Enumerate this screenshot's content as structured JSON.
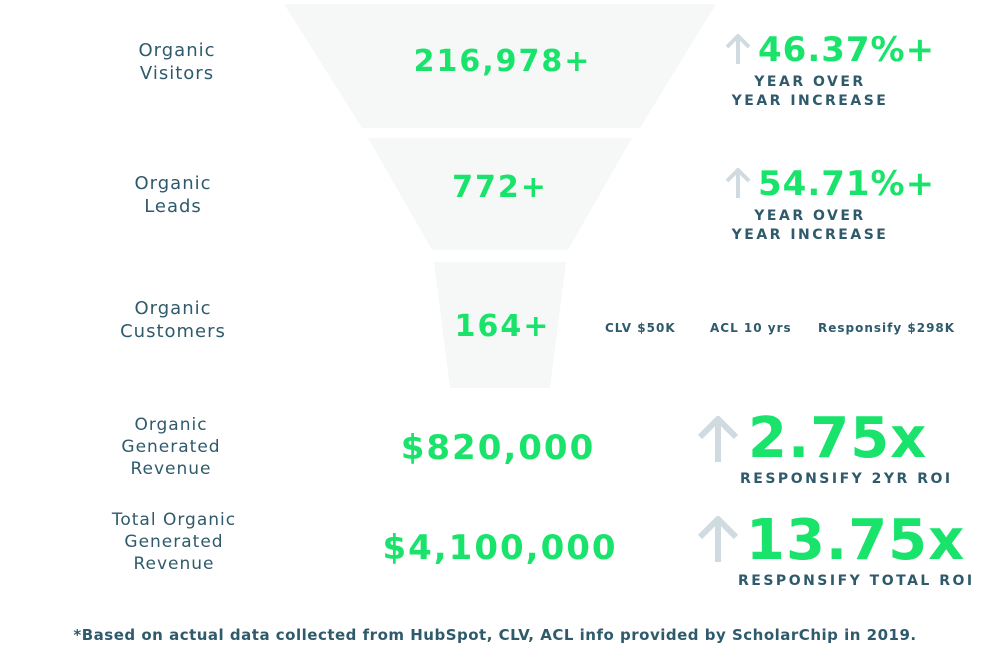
{
  "stages": [
    {
      "label_lines": [
        "Organic",
        "Visitors"
      ],
      "value": "216,978+",
      "change": "46.37%+",
      "caption_lines": [
        "YEAR OVER",
        "YEAR INCREASE"
      ]
    },
    {
      "label_lines": [
        "Organic",
        "Leads"
      ],
      "value": "772+",
      "change": "54.71%+",
      "caption_lines": [
        "YEAR OVER",
        "YEAR INCREASE"
      ]
    },
    {
      "label_lines": [
        "Organic",
        "Customers"
      ],
      "value": "164+",
      "metrics": [
        "CLV $50K",
        "ACL 10 yrs",
        "Responsify $298K"
      ]
    },
    {
      "label_lines": [
        "Organic",
        "Generated",
        "Revenue"
      ],
      "value": "$820,000",
      "multiplier": "2.75x",
      "caption": "RESPONSIFY 2YR ROI"
    },
    {
      "label_lines": [
        "Total Organic",
        "Generated",
        "Revenue"
      ],
      "value": "$4,100,000",
      "multiplier": "13.75x",
      "caption": "RESPONSIFY TOTAL ROI"
    }
  ],
  "footnote": "*Based on actual data collected from HubSpot, CLV, ACL info provided by ScholarChip in 2019.",
  "colors": {
    "accent": "#19e36b",
    "text": "#2f5a6b",
    "funnel": "#f6f8f7",
    "arrow": "#cfdbe1"
  },
  "icons": [
    "up-arrow-icon"
  ]
}
